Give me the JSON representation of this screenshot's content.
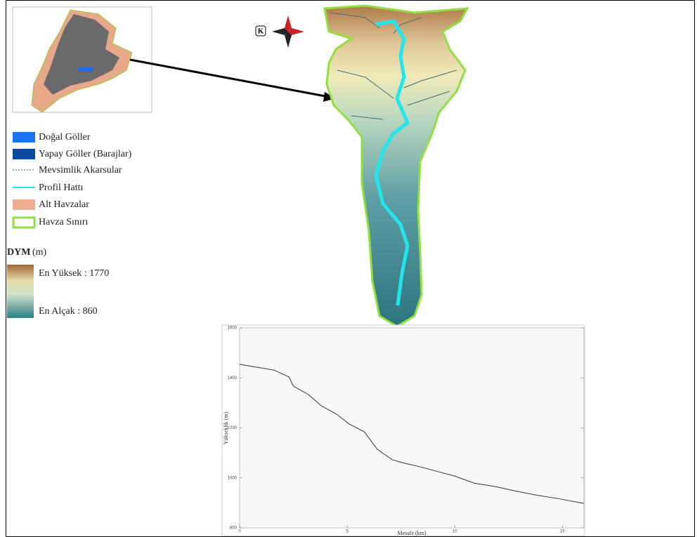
{
  "legend": {
    "items": [
      "Doğal Göller",
      "Yapay Göller (Barajlar)",
      "Mevsimlik Akarsular",
      "Profil Hattı",
      "Alt Havzalar",
      "Havza Sınırı"
    ]
  },
  "dem": {
    "title": "DYM",
    "unit": "(m)",
    "high": "En Yüksek : 1770",
    "low": "En Alçak : 860"
  },
  "north": "K",
  "chart_data": {
    "type": "line",
    "x_label": "Mesafe (km)",
    "y_label": "Yükseklik (m)",
    "x": [
      0,
      1.6,
      2.3,
      2.5,
      3.2,
      3.8,
      4.5,
      5.1,
      5.8,
      6.4,
      7.1,
      7.7,
      8.4,
      9.0,
      10.0,
      10.9,
      11.9,
      12.9,
      13.8,
      14.8,
      16.0
    ],
    "series": [
      {
        "color": "#333333",
        "values": [
          1454,
          1431,
          1403,
          1367,
          1333,
          1288,
          1255,
          1215,
          1184,
          1114,
          1072,
          1058,
          1044,
          1030,
          1007,
          979,
          965,
          946,
          931,
          917,
          898
        ]
      }
    ],
    "xlim": [
      0,
      16
    ],
    "ylim": [
      800,
      1600
    ],
    "xticks": [
      0,
      5,
      10,
      15
    ],
    "yticks": [
      800,
      1000,
      1200,
      1400,
      1600
    ],
    "grid": false
  }
}
